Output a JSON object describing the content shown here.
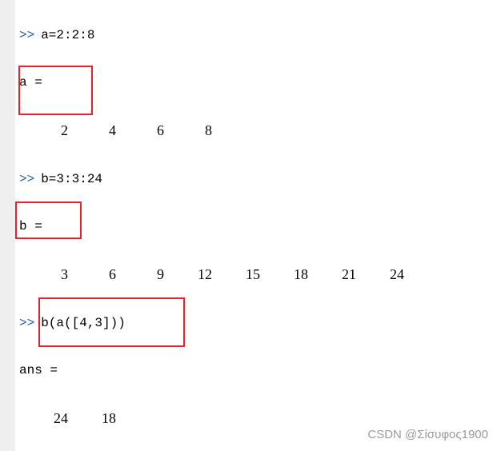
{
  "prompt_symbol": ">>",
  "blocks": [
    {
      "command": "a=2:2:8",
      "result_label": "a =",
      "values": [
        "2",
        "4",
        "6",
        "8"
      ]
    },
    {
      "command": "b=3:3:24",
      "result_label": "b =",
      "values": [
        "3",
        "6",
        "9",
        "12",
        "15",
        "18",
        "21",
        "24"
      ]
    },
    {
      "command": "b(a([4,3]))",
      "result_label": "ans =",
      "values": [
        "24",
        "18"
      ]
    }
  ],
  "highlight_color": "#e5212b",
  "watermark": "CSDN @Σίσυφος1900"
}
